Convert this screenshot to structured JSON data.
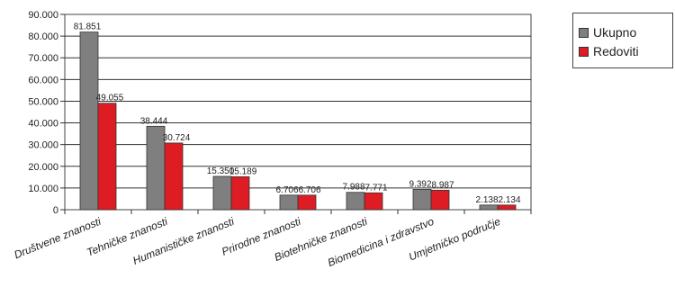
{
  "chart_data": {
    "type": "bar",
    "categories": [
      "Društvene znanosti",
      "Tehničke znanosti",
      "Humanističke znanosti",
      "Prirodne znanosti",
      "Biotehničke znanosti",
      "Biomedicina i zdravstvo",
      "Umjetničko područje"
    ],
    "series": [
      {
        "name": "Ukupno",
        "color": "#7f7f7f",
        "values": [
          81851,
          38444,
          15350,
          6706,
          7988,
          9392,
          2138
        ],
        "labels": [
          "81.851",
          "38.444",
          "15.350",
          "6.706",
          "7.988",
          "9.392",
          "2.138"
        ]
      },
      {
        "name": "Redoviti",
        "color": "#dd1c24",
        "values": [
          49055,
          30724,
          15189,
          6706,
          7771,
          8987,
          2134
        ],
        "labels": [
          "49.055",
          "30.724",
          "15.189",
          "6.706",
          "7.771",
          "8.987",
          "2.134"
        ]
      }
    ],
    "y_ticks": [
      0,
      10000,
      20000,
      30000,
      40000,
      50000,
      60000,
      70000,
      80000,
      90000
    ],
    "y_tick_labels": [
      "0",
      "10.000",
      "20.000",
      "30.000",
      "40.000",
      "50.000",
      "60.000",
      "70.000",
      "80.000",
      "90.000"
    ],
    "ylim": [
      0,
      90000
    ],
    "grid": true,
    "legend_position": "top-right"
  }
}
